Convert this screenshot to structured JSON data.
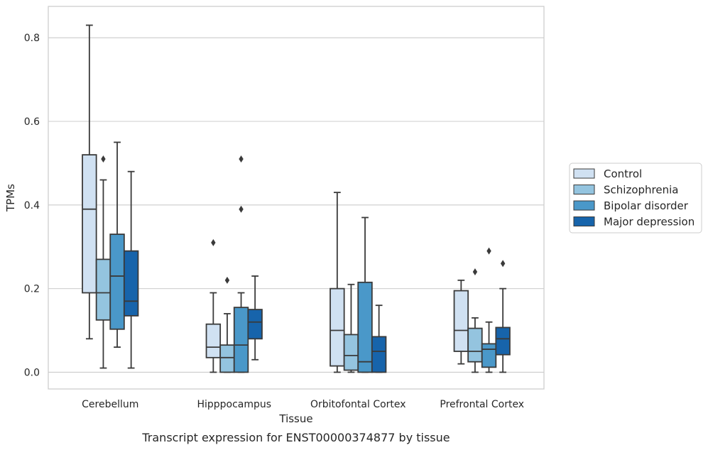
{
  "caption": "Transcript expression for ENST00000374877 by tissue",
  "chart_data": {
    "type": "box",
    "xlabel": "Tissue",
    "ylabel": "TPMs",
    "categories": [
      "Cerebellum",
      "Hipppocampus",
      "Orbitofontal Cortex",
      "Prefrontal Cortex"
    ],
    "ylim": [
      -0.04,
      0.875
    ],
    "yticks": [
      0.0,
      0.2,
      0.4,
      0.6,
      0.8
    ],
    "ytick_labels": [
      "0.0",
      "0.2",
      "0.4",
      "0.6",
      "0.8"
    ],
    "grid": "horizontal",
    "legend_position": "right",
    "series": [
      {
        "name": "Control",
        "color": "#d0e1f2",
        "boxes": [
          {
            "whislo": 0.08,
            "q1": 0.19,
            "med": 0.39,
            "q3": 0.52,
            "whishi": 0.83,
            "fliers": []
          },
          {
            "whislo": 0.0,
            "q1": 0.035,
            "med": 0.06,
            "q3": 0.115,
            "whishi": 0.19,
            "fliers": [
              0.31
            ]
          },
          {
            "whislo": 0.0,
            "q1": 0.015,
            "med": 0.1,
            "q3": 0.2,
            "whishi": 0.43,
            "fliers": []
          },
          {
            "whislo": 0.02,
            "q1": 0.05,
            "med": 0.1,
            "q3": 0.195,
            "whishi": 0.22,
            "fliers": []
          }
        ]
      },
      {
        "name": "Schizophrenia",
        "color": "#94c4df",
        "boxes": [
          {
            "whislo": 0.01,
            "q1": 0.125,
            "med": 0.19,
            "q3": 0.27,
            "whishi": 0.46,
            "fliers": [
              0.51
            ]
          },
          {
            "whislo": 0.0,
            "q1": 0.0,
            "med": 0.035,
            "q3": 0.065,
            "whishi": 0.14,
            "fliers": [
              0.22
            ]
          },
          {
            "whislo": 0.0,
            "q1": 0.005,
            "med": 0.04,
            "q3": 0.09,
            "whishi": 0.21,
            "fliers": []
          },
          {
            "whislo": 0.0,
            "q1": 0.025,
            "med": 0.05,
            "q3": 0.105,
            "whishi": 0.13,
            "fliers": [
              0.24
            ]
          }
        ]
      },
      {
        "name": "Bipolar disorder",
        "color": "#4a98c9",
        "boxes": [
          {
            "whislo": 0.06,
            "q1": 0.103,
            "med": 0.23,
            "q3": 0.33,
            "whishi": 0.55,
            "fliers": []
          },
          {
            "whislo": 0.0,
            "q1": 0.0,
            "med": 0.065,
            "q3": 0.155,
            "whishi": 0.19,
            "fliers": [
              0.39,
              0.51
            ]
          },
          {
            "whislo": 0.0,
            "q1": 0.0,
            "med": 0.025,
            "q3": 0.215,
            "whishi": 0.37,
            "fliers": []
          },
          {
            "whislo": 0.0,
            "q1": 0.012,
            "med": 0.055,
            "q3": 0.068,
            "whishi": 0.12,
            "fliers": [
              0.29
            ]
          }
        ]
      },
      {
        "name": "Major depression",
        "color": "#1764ab",
        "boxes": [
          {
            "whislo": 0.01,
            "q1": 0.135,
            "med": 0.17,
            "q3": 0.29,
            "whishi": 0.48,
            "fliers": []
          },
          {
            "whislo": 0.03,
            "q1": 0.08,
            "med": 0.12,
            "q3": 0.15,
            "whishi": 0.23,
            "fliers": []
          },
          {
            "whislo": 0.0,
            "q1": 0.0,
            "med": 0.05,
            "q3": 0.085,
            "whishi": 0.16,
            "fliers": []
          },
          {
            "whislo": 0.0,
            "q1": 0.042,
            "med": 0.08,
            "q3": 0.107,
            "whishi": 0.2,
            "fliers": [
              0.26
            ]
          }
        ]
      }
    ]
  }
}
